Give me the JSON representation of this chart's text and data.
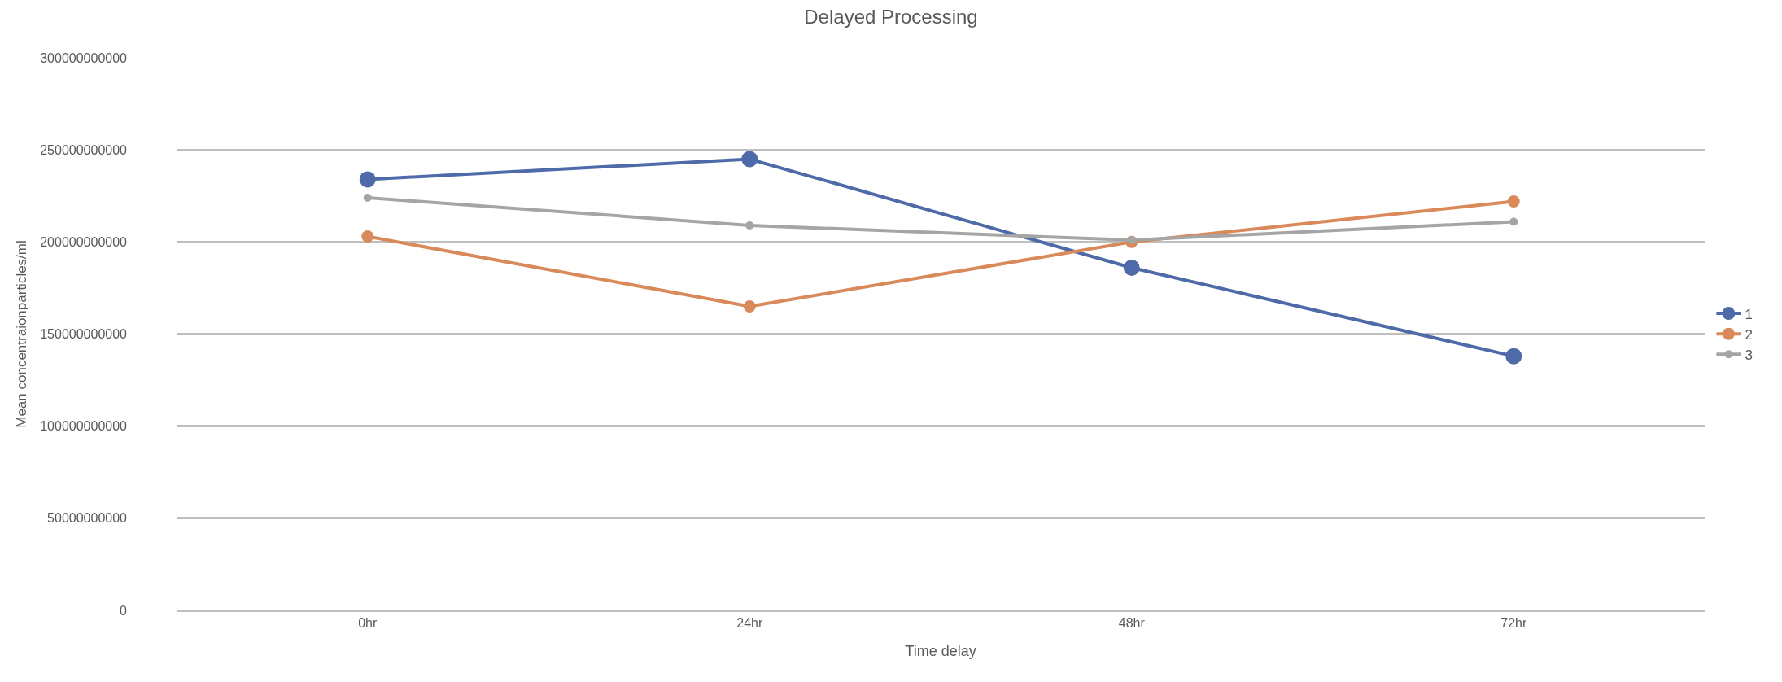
{
  "chart_data": {
    "type": "line",
    "title": "Delayed Processing",
    "xlabel": "Time delay",
    "ylabel": "Mean concentraionparticles/ml",
    "categories": [
      "0hr",
      "24hr",
      "48hr",
      "72hr"
    ],
    "series": [
      {
        "name": "1",
        "color": "#4f6aa8",
        "values": [
          234000000000,
          245000000000,
          186000000000,
          138000000000
        ]
      },
      {
        "name": "2",
        "color": "#d9895a",
        "values": [
          203000000000,
          165000000000,
          200000000000,
          222000000000
        ]
      },
      {
        "name": "3",
        "color": "#a5a5a5",
        "values": [
          224000000000,
          209000000000,
          201000000000,
          211000000000
        ]
      }
    ],
    "ylim": [
      0,
      300000000000
    ],
    "yticks": [
      0,
      50000000000,
      100000000000,
      150000000000,
      200000000000,
      250000000000,
      300000000000
    ],
    "grid": "y",
    "legend": "right",
    "marker": "circle",
    "line_style": "solid"
  }
}
